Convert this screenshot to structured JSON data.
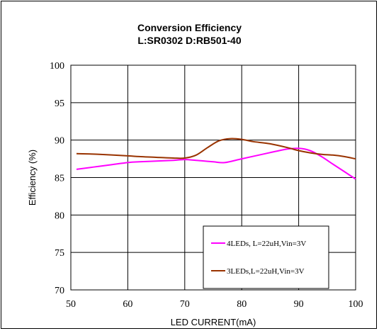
{
  "chart_data": {
    "type": "line",
    "title": "Conversion Efficiency",
    "subtitle": "L:SR0302 D:RB501-40",
    "xlabel": "LED CURRENT(mA)",
    "ylabel": "Efficiency (%)",
    "xlim": [
      50,
      100
    ],
    "ylim": [
      70,
      100
    ],
    "xticks": [
      50,
      60,
      70,
      80,
      90,
      100
    ],
    "yticks": [
      70,
      75,
      80,
      85,
      90,
      95,
      100
    ],
    "grid": true,
    "legend_position": "bottom-right",
    "series": [
      {
        "name": "4LEDs, L=22uH,Vin=3V",
        "color": "#ff00ff",
        "x": [
          51,
          55,
          60,
          62,
          65,
          68,
          70,
          72,
          75,
          77,
          80,
          83,
          86,
          88,
          90,
          92,
          94,
          96,
          98,
          100
        ],
        "y": [
          86.1,
          86.5,
          87.0,
          87.1,
          87.2,
          87.3,
          87.4,
          87.3,
          87.1,
          87.0,
          87.5,
          88.0,
          88.5,
          88.8,
          88.9,
          88.6,
          87.8,
          86.8,
          85.8,
          84.8
        ]
      },
      {
        "name": "3LEDs,L=22uH,Vin=3V",
        "color": "#993300",
        "x": [
          51,
          55,
          60,
          62,
          65,
          68,
          70,
          72,
          74,
          76,
          78,
          80,
          82,
          85,
          88,
          90,
          92,
          94,
          96,
          98,
          100
        ],
        "y": [
          88.2,
          88.1,
          87.9,
          87.8,
          87.7,
          87.6,
          87.6,
          88.0,
          89.0,
          89.9,
          90.2,
          90.1,
          89.8,
          89.5,
          89.0,
          88.6,
          88.3,
          88.1,
          88.0,
          87.8,
          87.5
        ]
      }
    ]
  }
}
